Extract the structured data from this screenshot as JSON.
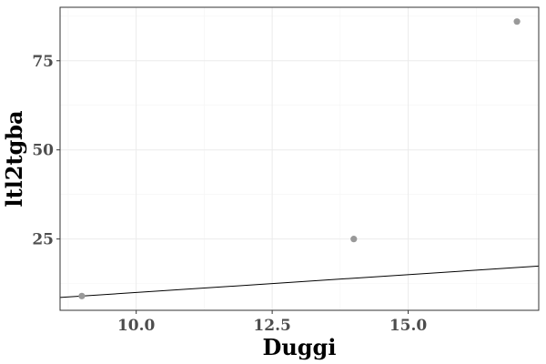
{
  "chart_data": {
    "type": "scatter",
    "xlabel": "Duggi",
    "ylabel": "ltl2tgba",
    "xlim": [
      8.6,
      17.4
    ],
    "ylim": [
      5,
      90
    ],
    "x_ticks": [
      10.0,
      12.5,
      15.0
    ],
    "x_tick_labels": [
      "10.0",
      "12.5",
      "15.0"
    ],
    "y_ticks": [
      25,
      50,
      75
    ],
    "y_tick_labels": [
      "25",
      "50",
      "75"
    ],
    "grid": true,
    "points": [
      {
        "x": 9.0,
        "y": 9
      },
      {
        "x": 14.0,
        "y": 25
      },
      {
        "x": 17.0,
        "y": 86
      }
    ],
    "reference_line": {
      "slope": 1,
      "intercept": 0
    },
    "point_color": "#999999",
    "line_color": "#000000"
  }
}
